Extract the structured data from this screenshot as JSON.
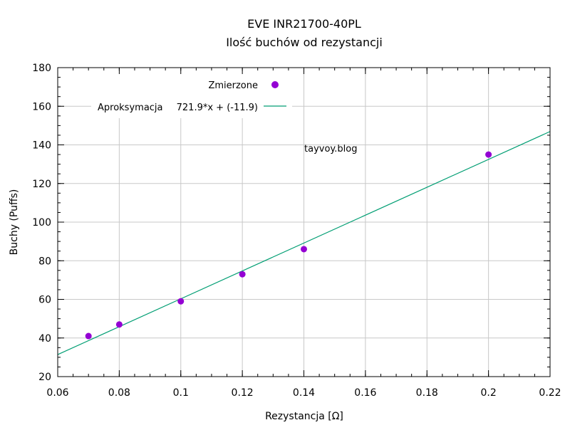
{
  "chart_data": {
    "type": "scatter",
    "title": "EVE INR21700-40PL",
    "subtitle": "Ilość buchów od rezystancji",
    "xlabel": "Rezystancja [Ω]",
    "ylabel": "Buchy (Puffs)",
    "xlim": [
      0.06,
      0.22
    ],
    "ylim": [
      20,
      180
    ],
    "xticks": [
      0.06,
      0.08,
      0.1,
      0.12,
      0.14,
      0.16,
      0.18,
      0.2,
      0.22
    ],
    "xtick_labels": [
      "0.06",
      "0.08",
      "0.1",
      "0.12",
      "0.14",
      "0.16",
      "0.18",
      "0.2",
      "0.22"
    ],
    "yticks": [
      20,
      40,
      60,
      80,
      100,
      120,
      140,
      160,
      180
    ],
    "ytick_labels": [
      "20",
      "40",
      "60",
      "80",
      "100",
      "120",
      "140",
      "160",
      "180"
    ],
    "grid": true,
    "legend_position": "top-left",
    "series": [
      {
        "name": "Zmierzone",
        "kind": "points",
        "color": "#9400d3",
        "x": [
          0.07,
          0.08,
          0.1,
          0.12,
          0.14,
          0.2
        ],
        "y": [
          41,
          47,
          59,
          73,
          86,
          135
        ]
      },
      {
        "name": "Aproksymacja",
        "kind": "line",
        "color": "#009e73",
        "formula_label": "721.9*x + (-11.9)",
        "slope": 721.9,
        "intercept": -11.9
      }
    ],
    "annotation": {
      "text": "tayvoy.blog",
      "color": "#2222ee",
      "x": 0.14,
      "y": 138
    }
  }
}
